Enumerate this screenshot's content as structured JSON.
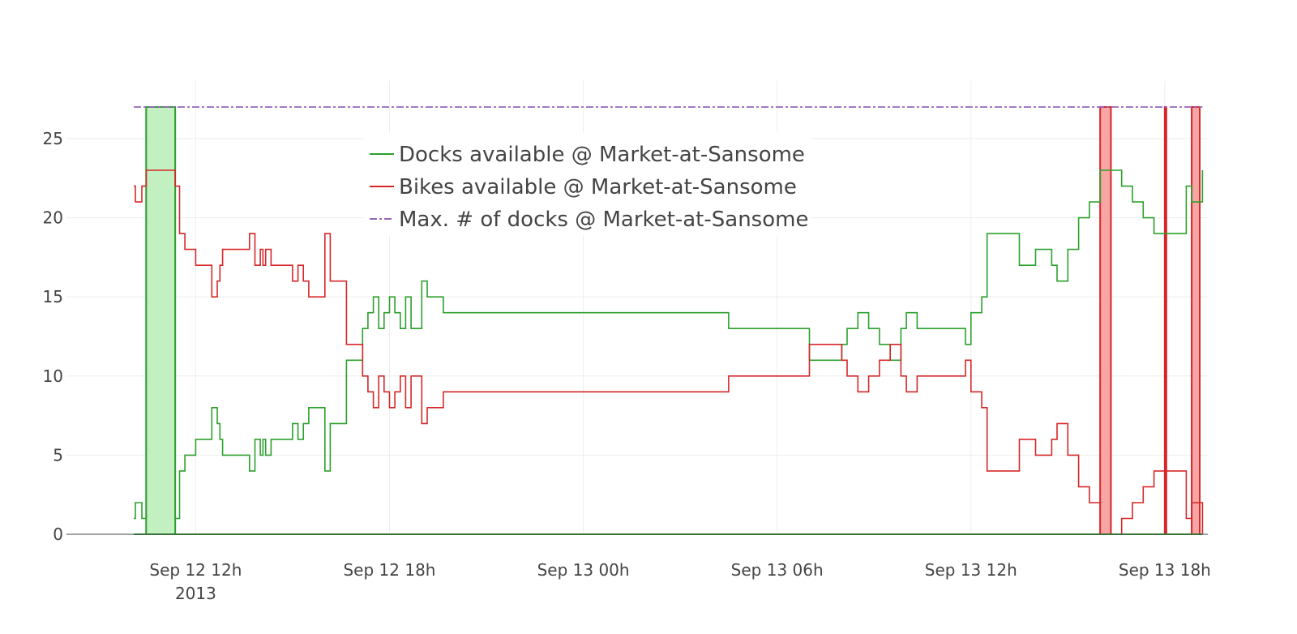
{
  "chart_data": {
    "type": "line",
    "x_axis": {
      "type": "date",
      "range": [
        "2013-09-12T08:00",
        "2013-09-13T19:20"
      ],
      "ticks": [
        {
          "at": "2013-09-12T12:00",
          "label": "Sep 12 12h",
          "sublabel": "2013"
        },
        {
          "at": "2013-09-12T18:00",
          "label": "Sep 12 18h"
        },
        {
          "at": "2013-09-13T00:00",
          "label": "Sep 13 00h"
        },
        {
          "at": "2013-09-13T06:00",
          "label": "Sep 13 06h"
        },
        {
          "at": "2013-09-13T12:00",
          "label": "Sep 13 12h"
        },
        {
          "at": "2013-09-13T18:00",
          "label": "Sep 13 18h"
        }
      ]
    },
    "y_axis": {
      "range": [
        0,
        28
      ],
      "ticks": [
        0,
        5,
        10,
        15,
        20,
        25
      ],
      "tick_labels": [
        "0",
        "5",
        "10",
        "15",
        "20",
        "25"
      ]
    },
    "grid": true,
    "legend_position": "top-center",
    "colors": {
      "docks": "#2ca02c",
      "bikes": "#d62728",
      "max": "#9467bd",
      "docks_fill": "#c3f0c1",
      "bikes_fill": "#f7a5a5"
    },
    "series": [
      {
        "name": "Docks available @ Market-at-Sansome",
        "color": "#2ca02c",
        "style": "step",
        "x": [
          "2013-09-12T10:05",
          "2013-09-12T10:08",
          "2013-09-12T10:20",
          "2013-09-12T10:28",
          "2013-09-12T11:22",
          "2013-09-12T11:30",
          "2013-09-12T11:40",
          "2013-09-12T12:00",
          "2013-09-12T12:30",
          "2013-09-12T12:40",
          "2013-09-12T12:45",
          "2013-09-12T12:50",
          "2013-09-12T13:40",
          "2013-09-12T13:50",
          "2013-09-12T14:00",
          "2013-09-12T14:05",
          "2013-09-12T14:10",
          "2013-09-12T14:20",
          "2013-09-12T15:00",
          "2013-09-12T15:10",
          "2013-09-12T15:20",
          "2013-09-12T15:30",
          "2013-09-12T16:00",
          "2013-09-12T16:10",
          "2013-09-12T16:40",
          "2013-09-12T17:10",
          "2013-09-12T17:20",
          "2013-09-12T17:30",
          "2013-09-12T17:40",
          "2013-09-12T17:50",
          "2013-09-12T18:00",
          "2013-09-12T18:10",
          "2013-09-12T18:20",
          "2013-09-12T18:30",
          "2013-09-12T18:40",
          "2013-09-12T19:00",
          "2013-09-12T19:10",
          "2013-09-12T19:20",
          "2013-09-12T19:40",
          "2013-09-12T20:10",
          "2013-09-12T20:30",
          "2013-09-12T21:00",
          "2013-09-12T21:30",
          "2013-09-12T22:00",
          "2013-09-12T23:00",
          "2013-09-13T01:00",
          "2013-09-13T04:30",
          "2013-09-13T07:00",
          "2013-09-13T08:00",
          "2013-09-13T08:10",
          "2013-09-13T08:30",
          "2013-09-13T08:50",
          "2013-09-13T09:10",
          "2013-09-13T09:30",
          "2013-09-13T09:50",
          "2013-09-13T10:00",
          "2013-09-13T10:20",
          "2013-09-13T10:30",
          "2013-09-13T11:50",
          "2013-09-13T12:00",
          "2013-09-13T12:20",
          "2013-09-13T12:30",
          "2013-09-13T13:00",
          "2013-09-13T13:30",
          "2013-09-13T14:00",
          "2013-09-13T14:10",
          "2013-09-13T14:20",
          "2013-09-13T14:30",
          "2013-09-13T14:40",
          "2013-09-13T15:00",
          "2013-09-13T15:20",
          "2013-09-13T15:40",
          "2013-09-13T16:00",
          "2013-09-13T16:40",
          "2013-09-13T17:00",
          "2013-09-13T17:20",
          "2013-09-13T17:40",
          "2013-09-13T18:00",
          "2013-09-13T18:40",
          "2013-09-13T18:50",
          "2013-09-13T19:00",
          "2013-09-13T19:10"
        ],
        "y": [
          1,
          2,
          1,
          27,
          1,
          4,
          5,
          6,
          8,
          7,
          6,
          5,
          4,
          6,
          5,
          6,
          5,
          6,
          7,
          6,
          7,
          8,
          4,
          7,
          11,
          13,
          14,
          15,
          13,
          14,
          15,
          14,
          13,
          15,
          13,
          16,
          15,
          15,
          14,
          14,
          14,
          14,
          14,
          14,
          14,
          14,
          13,
          11,
          12,
          13,
          14,
          13,
          12,
          11,
          13,
          14,
          13,
          13,
          12,
          14,
          15,
          19,
          19,
          17,
          18,
          18,
          18,
          17,
          16,
          18,
          20,
          21,
          23,
          22,
          21,
          20,
          19,
          19,
          22,
          21,
          21,
          23
        ],
        "fill_regions": [
          {
            "from": "2013-09-12T10:28",
            "to": "2013-09-12T11:22",
            "value": 27
          }
        ]
      },
      {
        "name": "Bikes available @ Market-at-Sansome",
        "color": "#d62728",
        "style": "step",
        "x": [
          "2013-09-12T10:05",
          "2013-09-12T10:08",
          "2013-09-12T10:20",
          "2013-09-12T10:28",
          "2013-09-12T11:22",
          "2013-09-12T11:30",
          "2013-09-12T11:40",
          "2013-09-12T12:00",
          "2013-09-12T12:30",
          "2013-09-12T12:40",
          "2013-09-12T12:45",
          "2013-09-12T12:50",
          "2013-09-12T13:40",
          "2013-09-12T13:50",
          "2013-09-12T14:00",
          "2013-09-12T14:05",
          "2013-09-12T14:10",
          "2013-09-12T14:20",
          "2013-09-12T15:00",
          "2013-09-12T15:10",
          "2013-09-12T15:20",
          "2013-09-12T15:30",
          "2013-09-12T16:00",
          "2013-09-12T16:10",
          "2013-09-12T16:40",
          "2013-09-12T17:10",
          "2013-09-12T17:20",
          "2013-09-12T17:30",
          "2013-09-12T17:40",
          "2013-09-12T17:50",
          "2013-09-12T18:00",
          "2013-09-12T18:10",
          "2013-09-12T18:20",
          "2013-09-12T18:30",
          "2013-09-12T18:40",
          "2013-09-12T19:00",
          "2013-09-12T19:10",
          "2013-09-12T19:20",
          "2013-09-12T19:40",
          "2013-09-12T20:10",
          "2013-09-12T20:30",
          "2013-09-12T21:00",
          "2013-09-12T21:30",
          "2013-09-12T22:00",
          "2013-09-12T23:00",
          "2013-09-13T01:00",
          "2013-09-13T04:30",
          "2013-09-13T07:00",
          "2013-09-13T08:00",
          "2013-09-13T08:10",
          "2013-09-13T08:30",
          "2013-09-13T08:50",
          "2013-09-13T09:10",
          "2013-09-13T09:30",
          "2013-09-13T09:50",
          "2013-09-13T10:00",
          "2013-09-13T10:20",
          "2013-09-13T10:30",
          "2013-09-13T11:50",
          "2013-09-13T12:00",
          "2013-09-13T12:20",
          "2013-09-13T12:30",
          "2013-09-13T13:00",
          "2013-09-13T13:30",
          "2013-09-13T14:00",
          "2013-09-13T14:10",
          "2013-09-13T14:20",
          "2013-09-13T14:30",
          "2013-09-13T14:40",
          "2013-09-13T15:00",
          "2013-09-13T15:20",
          "2013-09-13T15:40",
          "2013-09-13T16:00",
          "2013-09-13T16:40",
          "2013-09-13T17:00",
          "2013-09-13T17:20",
          "2013-09-13T17:40",
          "2013-09-13T18:00",
          "2013-09-13T18:40",
          "2013-09-13T18:50",
          "2013-09-13T19:00",
          "2013-09-13T19:10"
        ],
        "y": [
          22,
          21,
          22,
          23,
          22,
          19,
          18,
          17,
          15,
          16,
          17,
          18,
          19,
          17,
          18,
          17,
          18,
          17,
          16,
          17,
          16,
          15,
          19,
          16,
          12,
          10,
          9,
          8,
          10,
          9,
          8,
          9,
          10,
          8,
          10,
          7,
          8,
          8,
          9,
          9,
          9,
          9,
          9,
          9,
          9,
          9,
          10,
          12,
          11,
          10,
          9,
          10,
          11,
          12,
          10,
          9,
          10,
          10,
          11,
          9,
          8,
          4,
          4,
          6,
          5,
          5,
          5,
          6,
          7,
          5,
          3,
          2,
          0,
          1,
          2,
          3,
          4,
          4,
          1,
          2,
          2,
          0
        ],
        "fill_regions": [
          {
            "from": "2013-09-13T16:00",
            "to": "2013-09-13T16:20",
            "value": 27
          },
          {
            "from": "2013-09-13T18:00",
            "to": "2013-09-13T18:02",
            "value": 27
          },
          {
            "from": "2013-09-13T18:50",
            "to": "2013-09-13T19:05",
            "value": 27
          }
        ]
      },
      {
        "name": "Max. # of docks @ Market-at-Sansome",
        "color": "#9467bd",
        "style": "dashdot",
        "x": [
          "2013-09-12T10:05",
          "2013-09-13T19:10"
        ],
        "y": [
          27,
          27
        ]
      }
    ]
  }
}
